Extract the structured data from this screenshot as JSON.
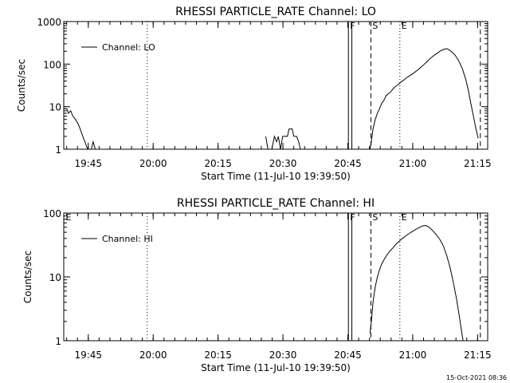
{
  "footer_stamp": "15-Oct-2021 08:36",
  "chart_data": [
    {
      "type": "line",
      "title": "RHESSI PARTICLE_RATE Channel: LO",
      "xlabel": "Start Time (11-Jul-10 19:39:50)",
      "ylabel": "Counts/sec",
      "y_scale": "log",
      "ylim": [
        1,
        1000
      ],
      "y_ticks": [
        "1",
        "10",
        "100",
        "1000"
      ],
      "xlim_minutes": [
        -0.5,
        97.5
      ],
      "x_ticks": [
        "19:45",
        "20:00",
        "20:15",
        "20:30",
        "20:45",
        "21:00",
        "21:15"
      ],
      "x_tick_minutes": [
        5.17,
        20.17,
        35.17,
        50.17,
        65.17,
        80.17,
        95.17
      ],
      "legend": "Channel: LO",
      "legend_position": "top-left",
      "markers": [
        {
          "label": "",
          "minute": 18.8,
          "style": "dotted"
        },
        {
          "label": "F",
          "minute": 65.3,
          "style": "solid"
        },
        {
          "label": "",
          "minute": 66.1,
          "style": "solid"
        },
        {
          "label": "S",
          "minute": 70.5,
          "style": "dashed"
        },
        {
          "label": "E",
          "minute": 77.2,
          "style": "dotted"
        },
        {
          "label": "",
          "minute": 95.8,
          "style": "dashed"
        }
      ],
      "series": [
        {
          "name": "Channel: LO",
          "segments": [
            [
              [
                -0.5,
                9
              ],
              [
                0.2,
                9
              ],
              [
                0.6,
                7
              ],
              [
                1.1,
                8
              ],
              [
                1.6,
                6
              ],
              [
                2.2,
                5
              ],
              [
                2.8,
                4
              ],
              [
                3.3,
                3
              ],
              [
                3.9,
                2
              ],
              [
                4.4,
                1.5
              ],
              [
                5.0,
                1
              ]
            ],
            [
              [
                5.9,
                1
              ],
              [
                6.3,
                1.5
              ],
              [
                6.8,
                1
              ]
            ],
            [
              [
                46.2,
                2
              ],
              [
                46.7,
                1
              ]
            ],
            [
              [
                47.6,
                1
              ],
              [
                48.2,
                2
              ],
              [
                48.7,
                1.5
              ],
              [
                49.1,
                2
              ],
              [
                49.6,
                1
              ],
              [
                50.1,
                2
              ],
              [
                50.7,
                2
              ],
              [
                51.2,
                2
              ],
              [
                51.6,
                3
              ],
              [
                52.3,
                3
              ],
              [
                52.7,
                2
              ],
              [
                53.3,
                2
              ],
              [
                53.8,
                1.5
              ],
              [
                54.2,
                1
              ]
            ],
            [
              [
                70.3,
                1
              ],
              [
                70.6,
                1.5
              ],
              [
                71.0,
                3
              ],
              [
                71.5,
                5
              ],
              [
                72.0,
                7
              ],
              [
                72.5,
                9
              ],
              [
                73.0,
                12
              ],
              [
                73.5,
                14
              ],
              [
                74.0,
                18
              ],
              [
                74.5,
                20
              ],
              [
                75.0,
                22
              ],
              [
                75.6,
                26
              ],
              [
                76.2,
                30
              ],
              [
                76.8,
                33
              ],
              [
                77.5,
                38
              ],
              [
                78.2,
                43
              ],
              [
                79.0,
                50
              ],
              [
                79.8,
                56
              ],
              [
                80.6,
                64
              ],
              [
                81.5,
                75
              ],
              [
                82.4,
                90
              ],
              [
                83.3,
                110
              ],
              [
                84.2,
                135
              ],
              [
                85.1,
                160
              ],
              [
                86.0,
                185
              ],
              [
                86.8,
                210
              ],
              [
                87.5,
                225
              ],
              [
                88.1,
                230
              ],
              [
                88.6,
                215
              ],
              [
                89.2,
                195
              ],
              [
                90.0,
                160
              ],
              [
                90.8,
                120
              ],
              [
                91.6,
                80
              ],
              [
                92.4,
                45
              ],
              [
                93.0,
                25
              ],
              [
                93.6,
                12
              ],
              [
                94.2,
                6
              ],
              [
                94.8,
                3
              ],
              [
                95.3,
                1.8
              ]
            ]
          ]
        }
      ]
    },
    {
      "type": "line",
      "title": "RHESSI PARTICLE_RATE Channel: HI",
      "xlabel": "Start Time (11-Jul-10 19:39:50)",
      "ylabel": "Counts/sec",
      "y_scale": "log",
      "ylim": [
        1,
        100
      ],
      "y_ticks": [
        "1",
        "10",
        "100"
      ],
      "xlim_minutes": [
        -0.5,
        97.5
      ],
      "x_ticks": [
        "19:45",
        "20:00",
        "20:15",
        "20:30",
        "20:45",
        "21:00",
        "21:15"
      ],
      "x_tick_minutes": [
        5.17,
        20.17,
        35.17,
        50.17,
        65.17,
        80.17,
        95.17
      ],
      "legend": "Channel: HI",
      "legend_position": "top-left",
      "markers": [
        {
          "label": "E",
          "minute": -0.4,
          "style": "none"
        },
        {
          "label": "",
          "minute": 18.8,
          "style": "dotted"
        },
        {
          "label": "F",
          "minute": 65.3,
          "style": "solid"
        },
        {
          "label": "",
          "minute": 66.1,
          "style": "solid"
        },
        {
          "label": "S",
          "minute": 70.5,
          "style": "dashed"
        },
        {
          "label": "E",
          "minute": 77.2,
          "style": "dotted"
        },
        {
          "label": "",
          "minute": 95.8,
          "style": "dashed"
        }
      ],
      "series": [
        {
          "name": "Channel: HI",
          "segments": [
            [
              [
                70.3,
                1.3
              ],
              [
                70.6,
                2
              ],
              [
                71.0,
                4
              ],
              [
                71.5,
                7
              ],
              [
                72.0,
                10
              ],
              [
                72.5,
                13
              ],
              [
                73.0,
                16
              ],
              [
                73.6,
                19
              ],
              [
                74.2,
                22
              ],
              [
                74.8,
                25
              ],
              [
                75.5,
                28
              ],
              [
                76.2,
                32
              ],
              [
                77.0,
                36
              ],
              [
                77.8,
                40
              ],
              [
                78.6,
                44
              ],
              [
                79.4,
                48
              ],
              [
                80.2,
                52
              ],
              [
                81.0,
                56
              ],
              [
                81.8,
                60
              ],
              [
                82.5,
                63
              ],
              [
                83.1,
                64
              ],
              [
                83.6,
                62
              ],
              [
                84.2,
                58
              ],
              [
                84.9,
                52
              ],
              [
                85.7,
                45
              ],
              [
                86.5,
                38
              ],
              [
                87.3,
                30
              ],
              [
                88.0,
                22
              ],
              [
                88.8,
                14
              ],
              [
                89.6,
                8
              ],
              [
                90.3,
                4.5
              ],
              [
                90.9,
                2.5
              ],
              [
                91.4,
                1.5
              ],
              [
                91.8,
                1
              ]
            ]
          ]
        }
      ]
    }
  ]
}
